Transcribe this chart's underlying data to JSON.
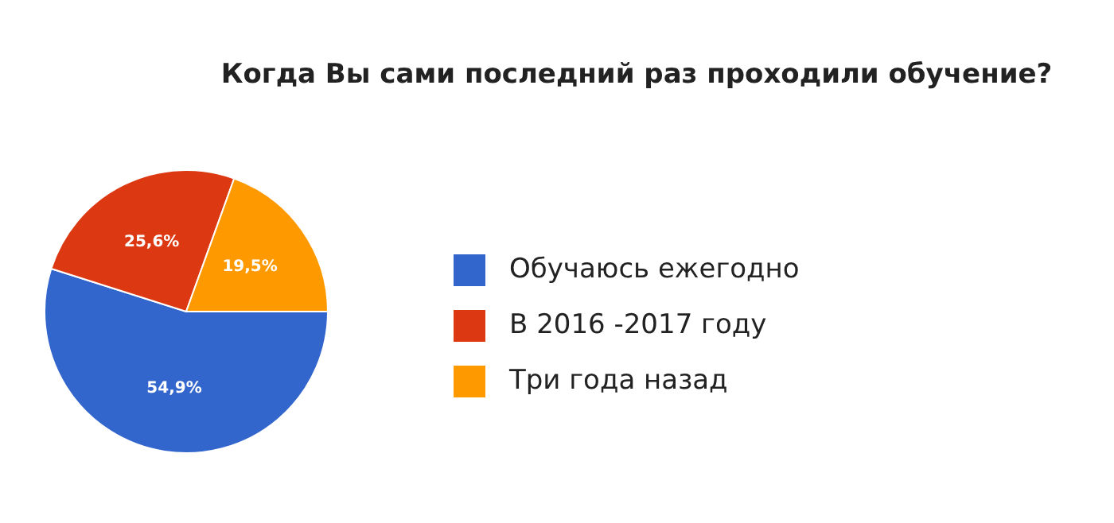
{
  "chart_data": {
    "type": "pie",
    "title": "Когда Вы сами последний раз проходили обучение?",
    "categories": [
      "Обучаюсь ежегодно",
      "В 2016 -2017 году",
      "Три года назад"
    ],
    "values": [
      54.9,
      25.6,
      19.5
    ],
    "colors": [
      "#3366cc",
      "#dc3912",
      "#ff9900"
    ],
    "value_labels": [
      "54,9%",
      "25,6%",
      "19,5%"
    ],
    "legend": "right"
  }
}
